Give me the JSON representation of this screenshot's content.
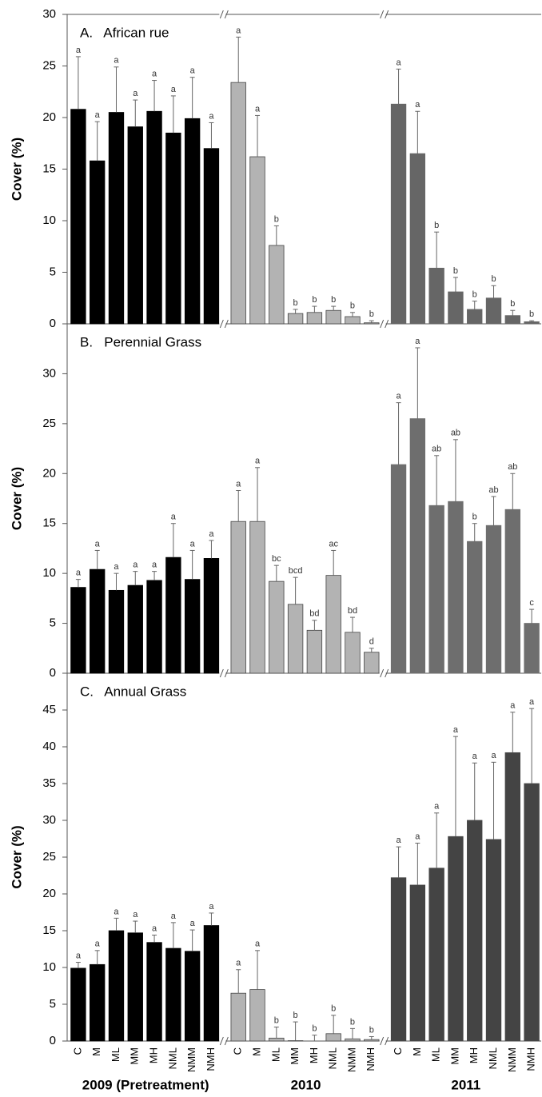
{
  "chart_data": [
    {
      "type": "bar",
      "title": "A.   African rue",
      "y_label": "Cover (%)",
      "ylim": [
        0,
        30
      ],
      "yticks": [
        0,
        5,
        10,
        15,
        20,
        25,
        30
      ],
      "series": [
        {
          "color": "#000000",
          "values": [
            20.8,
            15.8,
            20.5,
            19.1,
            20.6,
            18.5,
            19.9,
            17.0
          ],
          "errors": [
            5.1,
            3.8,
            4.4,
            2.6,
            3.0,
            3.6,
            4.0,
            2.5
          ],
          "letters": [
            "a",
            "a",
            "a",
            "a",
            "a",
            "a",
            "a",
            "a"
          ]
        },
        {
          "color": "#b3b3b3",
          "values": [
            23.4,
            16.2,
            7.6,
            1.0,
            1.1,
            1.3,
            0.7,
            0.1
          ],
          "errors": [
            4.4,
            4.0,
            1.9,
            0.4,
            0.6,
            0.4,
            0.4,
            0.2
          ],
          "letters": [
            "a",
            "a",
            "b",
            "b",
            "b",
            "b",
            "b",
            "b"
          ]
        },
        {
          "color": "#666666",
          "values": [
            21.3,
            16.5,
            5.4,
            3.1,
            1.4,
            2.5,
            0.8,
            0.2
          ],
          "errors": [
            3.4,
            4.1,
            3.5,
            1.4,
            0.8,
            1.2,
            0.5,
            0.1
          ],
          "letters": [
            "a",
            "a",
            "b",
            "b",
            "b",
            "b",
            "b",
            "b"
          ]
        }
      ]
    },
    {
      "type": "bar",
      "title": "B.   Perennial Grass",
      "y_label": "Cover (%)",
      "ylim": [
        0,
        35
      ],
      "yticks": [
        0,
        5,
        10,
        15,
        20,
        25,
        30
      ],
      "series": [
        {
          "color": "#000000",
          "values": [
            8.6,
            10.4,
            8.3,
            8.8,
            9.3,
            11.6,
            9.4,
            11.5
          ],
          "errors": [
            0.8,
            1.9,
            1.7,
            1.4,
            0.9,
            3.4,
            2.9,
            1.8
          ],
          "letters": [
            "a",
            "a",
            "a",
            "a",
            "a",
            "a",
            "a",
            "a"
          ]
        },
        {
          "color": "#b3b3b3",
          "values": [
            15.2,
            15.2,
            9.2,
            6.9,
            4.3,
            9.8,
            4.1,
            2.1
          ],
          "errors": [
            3.1,
            5.4,
            1.6,
            2.7,
            1.0,
            2.5,
            1.5,
            0.4
          ],
          "letters": [
            "a",
            "a",
            "bc",
            "bcd",
            "bd",
            "ac",
            "bd",
            "d"
          ]
        },
        {
          "color": "#6e6e6e",
          "values": [
            20.9,
            25.5,
            16.8,
            17.2,
            13.2,
            14.8,
            16.4,
            5.0
          ],
          "errors": [
            6.2,
            7.1,
            5.0,
            6.2,
            1.8,
            2.9,
            3.6,
            1.4
          ],
          "letters": [
            "a",
            "a",
            "ab",
            "ab",
            "b",
            "ab",
            "ab",
            "c"
          ]
        }
      ]
    },
    {
      "type": "bar",
      "title": "C.   Annual Grass",
      "y_label": "Cover (%)",
      "ylim": [
        0,
        50
      ],
      "yticks": [
        0,
        5,
        10,
        15,
        20,
        25,
        30,
        35,
        40,
        45
      ],
      "categories": [
        "C",
        "M",
        "ML",
        "MM",
        "MH",
        "NML",
        "NMM",
        "NMH"
      ],
      "series": [
        {
          "name": "2009 (Pretreatment)",
          "color": "#000000",
          "values": [
            9.9,
            10.4,
            15.0,
            14.7,
            13.4,
            12.6,
            12.2,
            15.7
          ],
          "errors": [
            0.8,
            1.9,
            1.7,
            1.6,
            1.0,
            3.5,
            2.9,
            1.7
          ],
          "letters": [
            "a",
            "a",
            "a",
            "a",
            "a",
            "a",
            "a",
            "a"
          ]
        },
        {
          "name": "2010",
          "color": "#b3b3b3",
          "values": [
            6.5,
            7.0,
            0.4,
            0.05,
            0,
            1.0,
            0.3,
            0.2
          ],
          "errors": [
            3.2,
            5.3,
            1.5,
            2.55,
            0.8,
            2.5,
            1.4,
            0.4
          ],
          "letters": [
            "a",
            "a",
            "b",
            "b",
            "b",
            "b",
            "b",
            "b"
          ]
        },
        {
          "name": "2011",
          "color": "#444444",
          "values": [
            22.2,
            21.2,
            23.5,
            27.8,
            30.0,
            27.4,
            39.2,
            35.0
          ],
          "errors": [
            4.2,
            5.7,
            7.5,
            13.6,
            7.8,
            10.5,
            5.5,
            10.2
          ],
          "letters": [
            "a",
            "a",
            "a",
            "a",
            "a",
            "a",
            "a",
            "a"
          ]
        }
      ]
    }
  ]
}
